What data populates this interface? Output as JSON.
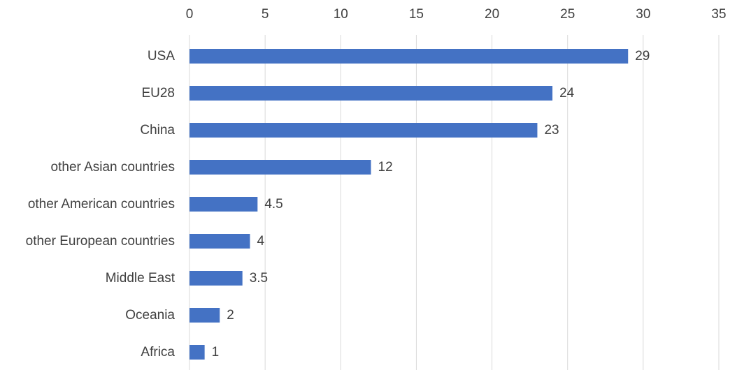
{
  "chart_data": {
    "type": "bar",
    "orientation": "horizontal",
    "categories": [
      "USA",
      "EU28",
      "China",
      "other Asian countries",
      "other American countries",
      "other European countries",
      "Middle East",
      "Oceania",
      "Africa"
    ],
    "values": [
      29,
      24,
      23,
      12,
      4.5,
      4,
      3.5,
      2,
      1
    ],
    "data_labels": [
      "29",
      "24",
      "23",
      "12",
      "4.5",
      "4",
      "3.5",
      "2",
      "1"
    ],
    "x_ticks": [
      "0",
      "5",
      "10",
      "15",
      "20",
      "25",
      "30",
      "35"
    ],
    "xlim": [
      0,
      35
    ],
    "x_axis_position": "top",
    "grid": true,
    "legend": "none",
    "title": "",
    "xlabel": "",
    "ylabel": "",
    "colors": {
      "bar": "#4472c4",
      "grid": "#d9d9d9",
      "text": "#404040"
    }
  }
}
